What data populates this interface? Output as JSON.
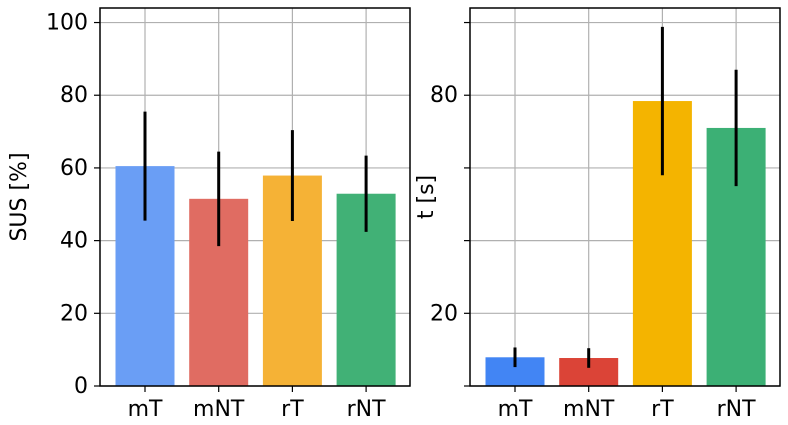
{
  "chart_data": [
    {
      "type": "bar",
      "ylabel": "SUS [%]",
      "categories": [
        "mT",
        "mNT",
        "rT",
        "rNT"
      ],
      "values": [
        60.5,
        51.5,
        57.9,
        52.9
      ],
      "errors": [
        15,
        13,
        12.5,
        10.5
      ],
      "colors": [
        "#6a9ef5",
        "#e06c62",
        "#f5b236",
        "#41b176"
      ],
      "ylim": [
        0,
        104
      ],
      "yticks": [
        0,
        20,
        40,
        60,
        80,
        100
      ],
      "grid": true
    },
    {
      "type": "bar",
      "ylabel": "t [s]",
      "categories": [
        "mT",
        "mNT",
        "rT",
        "rNT"
      ],
      "values": [
        7.9,
        7.7,
        78.4,
        71
      ],
      "errors": [
        2.7,
        2.7,
        20.4,
        16
      ],
      "colors": [
        "#4285f4",
        "#db4437",
        "#f4b400",
        "#3cb075"
      ],
      "ylim": [
        0,
        104
      ],
      "yticks": [
        {
          "value": 0,
          "label": null
        },
        20,
        {
          "value": 40,
          "label": null
        },
        {
          "value": 60,
          "label": null
        },
        80,
        {
          "value": 100,
          "label": null
        }
      ],
      "grid": true
    }
  ]
}
